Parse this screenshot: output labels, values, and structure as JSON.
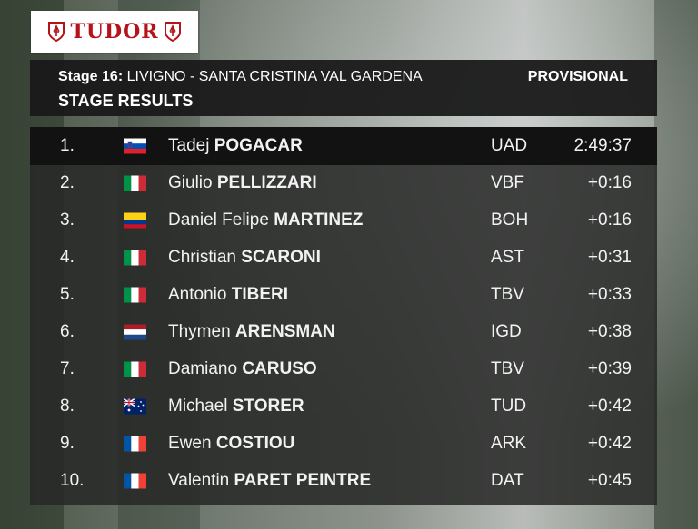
{
  "brand": {
    "logo_text": "TUDOR"
  },
  "header": {
    "stage_label": "Stage 16:",
    "route": "LIVIGNO - SANTA CRISTINA VAL GARDENA",
    "title": "STAGE RESULTS",
    "status": "PROVISIONAL"
  },
  "results": [
    {
      "pos": "1.",
      "flag": "slovenia-flag",
      "first": "Tadej",
      "last": "POGACAR",
      "team": "UAD",
      "time": "2:49:37"
    },
    {
      "pos": "2.",
      "flag": "italy-flag",
      "first": "Giulio",
      "last": "PELLIZZARI",
      "team": "VBF",
      "time": "+0:16"
    },
    {
      "pos": "3.",
      "flag": "colombia-flag",
      "first": "Daniel Felipe",
      "last": "MARTINEZ",
      "team": "BOH",
      "time": "+0:16"
    },
    {
      "pos": "4.",
      "flag": "italy-flag",
      "first": "Christian",
      "last": "SCARONI",
      "team": "AST",
      "time": "+0:31"
    },
    {
      "pos": "5.",
      "flag": "italy-flag",
      "first": "Antonio",
      "last": "TIBERI",
      "team": "TBV",
      "time": "+0:33"
    },
    {
      "pos": "6.",
      "flag": "netherlands-flag",
      "first": "Thymen",
      "last": "ARENSMAN",
      "team": "IGD",
      "time": "+0:38"
    },
    {
      "pos": "7.",
      "flag": "italy-flag",
      "first": "Damiano",
      "last": "CARUSO",
      "team": "TBV",
      "time": "+0:39"
    },
    {
      "pos": "8.",
      "flag": "australia-flag",
      "first": "Michael",
      "last": "STORER",
      "team": "TUD",
      "time": "+0:42"
    },
    {
      "pos": "9.",
      "flag": "france-flag",
      "first": "Ewen",
      "last": "COSTIOU",
      "team": "ARK",
      "time": "+0:42"
    },
    {
      "pos": "10.",
      "flag": "france-flag",
      "first": "Valentin",
      "last": "PARET PEINTRE",
      "team": "DAT",
      "time": "+0:45"
    }
  ],
  "colors": {
    "brand_red": "#b5121b",
    "panel_bg": "#181818",
    "leader_row_bg": "#121212"
  }
}
